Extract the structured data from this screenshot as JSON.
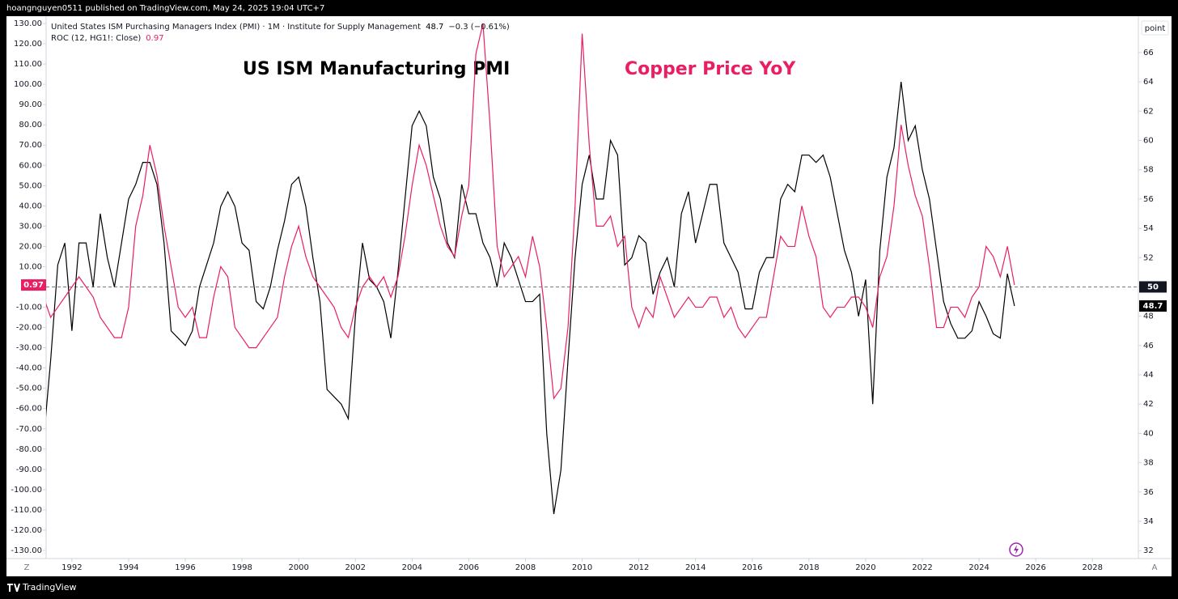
{
  "header": "hoangnguyen0511 published on TradingView.com, May 24, 2025 19:04 UTC+7",
  "footer": "TradingView",
  "chart_data": {
    "type": "line",
    "annotations": [
      "US ISM Manufacturing PMI",
      "Copper Price YoY"
    ],
    "y2_unit": "point",
    "scale_buttons": [
      "Z",
      "A"
    ],
    "change_label": "−0.3 (−0.61%)",
    "y2_reference": 50,
    "grid": false,
    "x": [
      1991,
      1991.25,
      1991.5,
      1991.75,
      1992,
      1992.25,
      1992.5,
      1992.75,
      1993,
      1993.25,
      1993.5,
      1993.75,
      1994,
      1994.25,
      1994.5,
      1994.75,
      1995,
      1995.25,
      1995.5,
      1995.75,
      1996,
      1996.25,
      1996.5,
      1996.75,
      1997,
      1997.25,
      1997.5,
      1997.75,
      1998,
      1998.25,
      1998.5,
      1998.75,
      1999,
      1999.25,
      1999.5,
      1999.75,
      2000,
      2000.25,
      2000.5,
      2000.75,
      2001,
      2001.25,
      2001.5,
      2001.75,
      2002,
      2002.25,
      2002.5,
      2002.75,
      2003,
      2003.25,
      2003.5,
      2003.75,
      2004,
      2004.25,
      2004.5,
      2004.75,
      2005,
      2005.25,
      2005.5,
      2005.75,
      2006,
      2006.25,
      2006.5,
      2006.75,
      2007,
      2007.25,
      2007.5,
      2007.75,
      2008,
      2008.25,
      2008.5,
      2008.75,
      2009,
      2009.25,
      2009.5,
      2009.75,
      2010,
      2010.25,
      2010.5,
      2010.75,
      2011,
      2011.25,
      2011.5,
      2011.75,
      2012,
      2012.25,
      2012.5,
      2012.75,
      2013,
      2013.25,
      2013.5,
      2013.75,
      2014,
      2014.25,
      2014.5,
      2014.75,
      2015,
      2015.25,
      2015.5,
      2015.75,
      2016,
      2016.25,
      2016.5,
      2016.75,
      2017,
      2017.25,
      2017.5,
      2017.75,
      2018,
      2018.25,
      2018.5,
      2018.75,
      2019,
      2019.25,
      2019.5,
      2019.75,
      2020,
      2020.25,
      2020.5,
      2020.75,
      2021,
      2021.25,
      2021.5,
      2021.75,
      2022,
      2022.25,
      2022.5,
      2022.75,
      2023,
      2023.25,
      2023.5,
      2023.75,
      2024,
      2024.25,
      2024.5,
      2024.75,
      2025,
      2025.25
    ],
    "series": [
      {
        "name": "United States ISM Purchasing Managers Index (PMI) · 1M · Institute for Supply Management",
        "color": "#000000",
        "axis": "y2",
        "values": [
          39.5,
          45,
          51.5,
          53,
          47,
          53,
          53,
          50,
          55,
          52,
          50,
          53,
          56,
          57,
          58.5,
          58.5,
          57,
          53,
          47,
          46.5,
          46,
          47,
          50,
          51.5,
          53,
          55.5,
          56.5,
          55.5,
          53,
          52.5,
          49,
          48.5,
          50,
          52.5,
          54.5,
          57,
          57.5,
          55.5,
          52,
          49,
          43,
          42.5,
          42,
          41,
          48,
          53,
          50.5,
          50,
          49,
          46.5,
          51,
          56,
          61,
          62,
          61,
          57.5,
          56,
          53,
          52,
          57,
          55,
          55,
          53,
          52,
          50,
          53,
          52,
          50.5,
          49,
          49,
          49.5,
          40,
          34.5,
          37.5,
          45,
          52,
          57,
          59,
          56,
          56,
          60,
          59,
          51.5,
          52,
          53.5,
          53,
          49.5,
          51,
          52,
          50,
          55,
          56.5,
          53,
          55,
          57,
          57,
          53,
          52,
          51,
          48.5,
          48.5,
          51,
          52,
          52,
          56,
          57,
          56.5,
          59,
          59,
          58.5,
          59,
          57.5,
          55,
          52.5,
          51,
          48,
          50.5,
          42,
          52.5,
          57.5,
          59.5,
          64,
          60,
          61,
          58,
          56,
          52.5,
          49,
          47.5,
          46.5,
          46.5,
          47,
          49,
          48,
          46.8,
          46.5,
          50.9,
          48.7
        ]
      },
      {
        "name": "ROC (12, HG1!: Close)",
        "color": "#e91e63",
        "values": [
          -5,
          -15,
          -10,
          -5,
          0,
          5,
          0,
          -5,
          -15,
          -20,
          -25,
          -25,
          -10,
          30,
          45,
          70,
          55,
          30,
          10,
          -10,
          -15,
          -10,
          -25,
          -25,
          -5,
          10,
          5,
          -20,
          -25,
          -30,
          -30,
          -25,
          -20,
          -15,
          5,
          20,
          30,
          15,
          5,
          0,
          -5,
          -10,
          -20,
          -25,
          -10,
          0,
          5,
          0,
          5,
          -5,
          5,
          25,
          50,
          70,
          60,
          45,
          30,
          20,
          15,
          35,
          50,
          115,
          130,
          80,
          20,
          5,
          10,
          15,
          5,
          25,
          10,
          -20,
          -55,
          -50,
          -20,
          40,
          125,
          70,
          30,
          30,
          35,
          20,
          25,
          -10,
          -20,
          -10,
          -15,
          5,
          -5,
          -15,
          -10,
          -5,
          -10,
          -10,
          -5,
          -5,
          -15,
          -10,
          -20,
          -25,
          -20,
          -15,
          -15,
          5,
          25,
          20,
          20,
          40,
          25,
          15,
          -10,
          -15,
          -10,
          -10,
          -5,
          -5,
          -10,
          -20,
          5,
          15,
          40,
          80,
          60,
          45,
          35,
          10,
          -20,
          -20,
          -10,
          -10,
          -15,
          -5,
          0,
          20,
          15,
          5,
          20,
          0.97
        ]
      }
    ],
    "xlim": [
      1991.09,
      2029.62
    ],
    "xticks": [
      1992,
      1994,
      1996,
      1998,
      2000,
      2002,
      2004,
      2006,
      2008,
      2010,
      2012,
      2014,
      2016,
      2018,
      2020,
      2022,
      2024,
      2026,
      2028
    ],
    "ylim": [
      -134,
      133.6
    ],
    "yticks": [
      {
        "value": 130,
        "label": "130.00"
      },
      {
        "value": 120,
        "label": "120.00"
      },
      {
        "value": 110,
        "label": "110.00"
      },
      {
        "value": 100,
        "label": "100.00"
      },
      {
        "value": 90,
        "label": "90.00"
      },
      {
        "value": 80,
        "label": "80.00"
      },
      {
        "value": 70,
        "label": "70.00"
      },
      {
        "value": 60,
        "label": "60.00"
      },
      {
        "value": 50,
        "label": "50.00"
      },
      {
        "value": 40,
        "label": "40.00"
      },
      {
        "value": 30,
        "label": "30.00"
      },
      {
        "value": 20,
        "label": "20.00"
      },
      {
        "value": 10,
        "label": "10.00"
      },
      {
        "value": 0,
        "label": "0.00"
      },
      {
        "value": -10,
        "label": "-10.00"
      },
      {
        "value": -20,
        "label": "-20.00"
      },
      {
        "value": -30,
        "label": "-30.00"
      },
      {
        "value": -40,
        "label": "-40.00"
      },
      {
        "value": -50,
        "label": "-50.00"
      },
      {
        "value": -60,
        "label": "-60.00"
      },
      {
        "value": -70,
        "label": "-70.00"
      },
      {
        "value": -80,
        "label": "-80.00"
      },
      {
        "value": -90,
        "label": "-90.00"
      },
      {
        "value": -100,
        "label": "-100.00"
      },
      {
        "value": -110,
        "label": "-110.00"
      },
      {
        "value": -120,
        "label": "-120.00"
      },
      {
        "value": -130,
        "label": "-130.00"
      }
    ],
    "y2lim": [
      31.46,
      68.48
    ],
    "y2ticks": [
      32,
      34,
      36,
      38,
      40,
      42,
      44,
      46,
      48,
      50,
      52,
      54,
      56,
      58,
      60,
      62,
      64,
      66
    ]
  }
}
